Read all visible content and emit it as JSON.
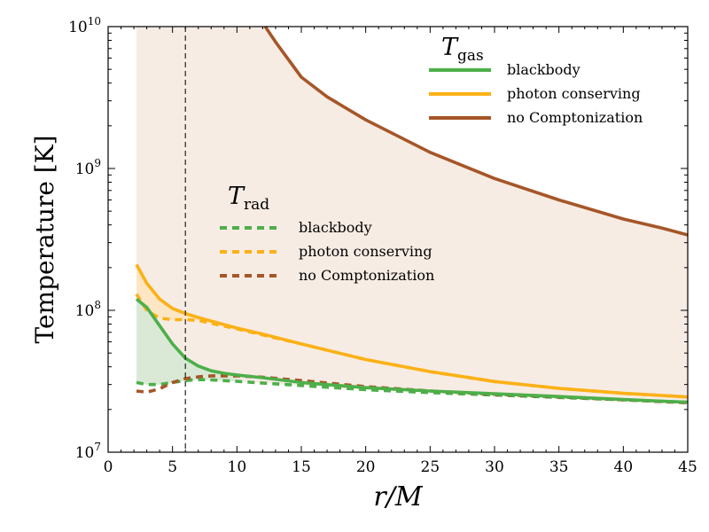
{
  "chart_data": {
    "type": "line",
    "title": "",
    "xlabel": "r/M",
    "ylabel": "Temperature [K]",
    "xlim": [
      0,
      45
    ],
    "ylim": [
      10000000,
      10000000000
    ],
    "yscale": "log",
    "x_ticks": [
      0,
      5,
      10,
      15,
      20,
      25,
      30,
      35,
      40,
      45
    ],
    "y_ticks": [
      {
        "exp": 7,
        "value": 10000000
      },
      {
        "exp": 8,
        "value": 100000000
      },
      {
        "exp": 9,
        "value": 1000000000
      },
      {
        "exp": 10,
        "value": 10000000000
      }
    ],
    "vline_x": 6,
    "legend_gas": {
      "title_main": "T",
      "title_sub": "gas",
      "entries": [
        "blackbody",
        "photon conserving",
        "no Comptonization"
      ]
    },
    "legend_rad": {
      "title_main": "T",
      "title_sub": "rad",
      "entries": [
        "blackbody",
        "photon conserving",
        "no Comptonization"
      ]
    },
    "colors": {
      "blackbody": "#4daf4a",
      "photon_conserving": "#fbb117",
      "no_comptonization": "#a65628",
      "fill_brown": "#f7ece4",
      "fill_green": "#d9e9d6",
      "fill_orange": "#fce6c4"
    },
    "series": [
      {
        "name": "T_gas blackbody",
        "style": "solid",
        "color_key": "blackbody",
        "x": [
          2.2,
          3,
          4,
          5,
          6,
          7,
          8,
          9,
          10,
          12,
          15,
          20,
          25,
          30,
          35,
          40,
          45
        ],
        "y": [
          120000000,
          105000000,
          78000000,
          58000000,
          46000000,
          40500000,
          37500000,
          36000000,
          35000000,
          33500000,
          31000000,
          28500000,
          27000000,
          25800000,
          24700000,
          23500000,
          22500000
        ]
      },
      {
        "name": "T_gas photon conserving",
        "style": "solid",
        "color_key": "photon_conserving",
        "x": [
          2.2,
          3,
          4,
          5,
          6,
          7,
          8,
          10,
          12,
          15,
          20,
          25,
          30,
          35,
          40,
          45
        ],
        "y": [
          210000000,
          155000000,
          120000000,
          103000000,
          95000000,
          89000000,
          84000000,
          75000000,
          68000000,
          58000000,
          45000000,
          37000000,
          31500000,
          28200000,
          26000000,
          24500000
        ]
      },
      {
        "name": "T_gas no Comptonization",
        "style": "solid",
        "color_key": "no_comptonization",
        "x": [
          12.2,
          13,
          15,
          17,
          20,
          25,
          30,
          35,
          40,
          43,
          45
        ],
        "y": [
          10000000000,
          7800000000,
          4400000000,
          3200000000,
          2200000000,
          1300000000,
          850000000,
          600000000,
          440000000,
          380000000,
          340000000
        ]
      },
      {
        "name": "T_rad blackbody",
        "style": "dashed",
        "color_key": "blackbody",
        "x": [
          2.2,
          3,
          4,
          5,
          6,
          7,
          8,
          10,
          15,
          20,
          25,
          30,
          35,
          40,
          45
        ],
        "y": [
          31000000,
          30000000,
          30000000,
          31000000,
          32000000,
          32500000,
          32300000,
          31600000,
          29500000,
          27600000,
          26300000,
          25300000,
          24300000,
          23400000,
          22500000
        ]
      },
      {
        "name": "T_rad photon conserving",
        "style": "dashed",
        "color_key": "photon_conserving",
        "x": [
          2.2,
          3,
          4,
          5,
          6,
          7,
          8,
          10,
          12,
          15,
          20,
          25,
          30,
          35,
          40,
          45
        ],
        "y": [
          130000000,
          100000000,
          88000000,
          86000000,
          86000000,
          85000000,
          81000000,
          74000000,
          67000000,
          58000000,
          45000000,
          37000000,
          31500000,
          28200000,
          26000000,
          24500000
        ]
      },
      {
        "name": "T_rad no Comptonization",
        "style": "dashed",
        "color_key": "no_comptonization",
        "x": [
          2.2,
          3,
          4,
          5,
          6,
          7,
          8,
          10,
          12,
          15,
          20,
          25,
          30,
          35,
          40,
          45
        ],
        "y": [
          27000000,
          26500000,
          28000000,
          31000000,
          33000000,
          34000000,
          34500000,
          34500000,
          33800000,
          32000000,
          29000000,
          27000000,
          25600000,
          24500000,
          23400000,
          22300000
        ]
      }
    ]
  }
}
